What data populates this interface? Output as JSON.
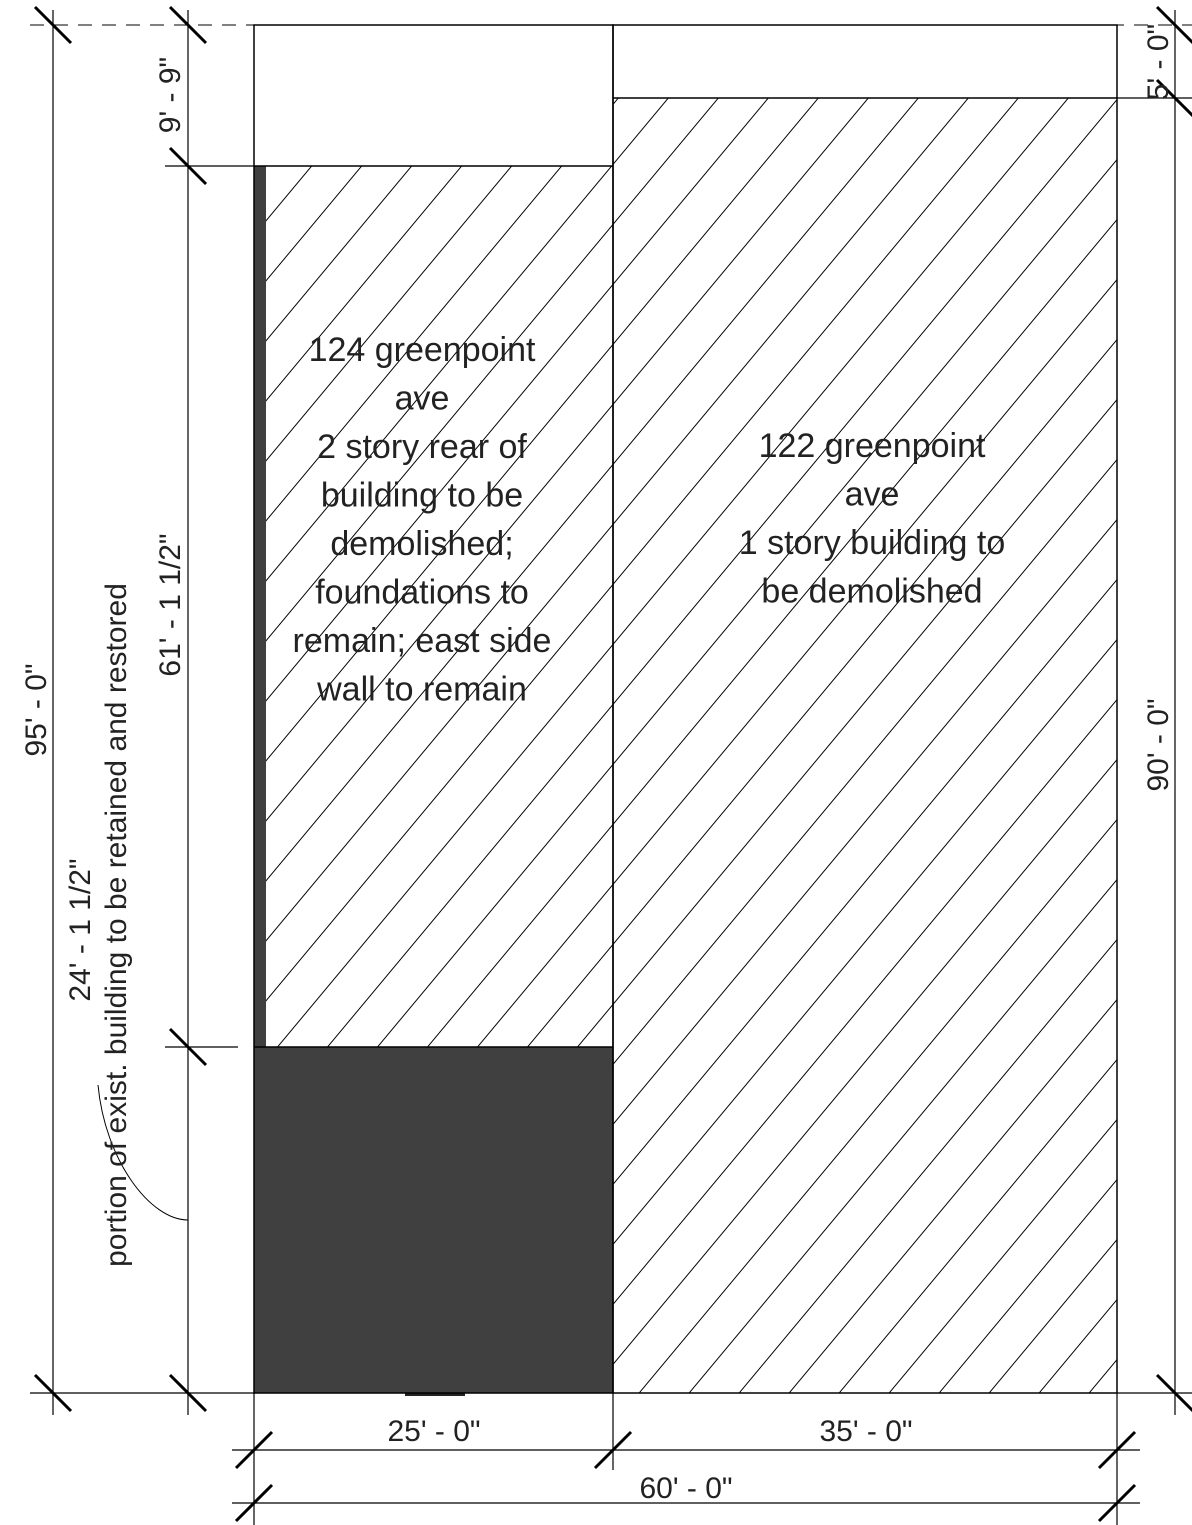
{
  "dimensions": {
    "overall_depth": "95' - 0\"",
    "rear_yard_left": "9' - 9\"",
    "demolish_depth": "61' - 1 1/2\"",
    "retained_depth": "24' - 1 1/2\"",
    "rear_yard_right": "5' - 0\"",
    "right_depth": "90' - 0\"",
    "left_width": "25' - 0\"",
    "right_width": "35' - 0\"",
    "total_width": "60' - 0\""
  },
  "labels": {
    "left_building": [
      "124 greenpoint",
      "ave",
      "2 story rear of",
      "building to be",
      "demolished;",
      "foundations to",
      "remain; east side",
      "wall to remain"
    ],
    "right_building": [
      "122 greenpoint",
      "ave",
      "1 story building to",
      "be demolished"
    ],
    "retained_note": "portion of exist. building to be retained and restored"
  }
}
